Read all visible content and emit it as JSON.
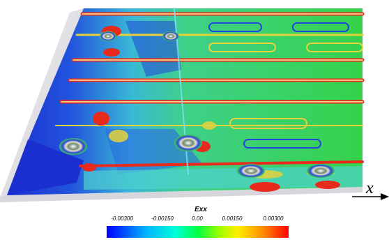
{
  "axis": {
    "x_label": "x"
  },
  "legend": {
    "title": "Exx",
    "ticks": [
      "-0.00300",
      "-0.00150",
      "0.00",
      "0.00150",
      "0.00300"
    ],
    "colors": [
      "#0000ff",
      "#00b6ff",
      "#00ffd8",
      "#00ff40",
      "#9dff00",
      "#ffee00",
      "#ff8c00",
      "#ff0000"
    ]
  },
  "palette": {
    "plate_green": "#36d24a",
    "low_blue": "#1b2fd0",
    "mid_cyan": "#39d1d1",
    "high_red": "#e82a1c",
    "yellow": "#e6d23a",
    "slab_gray": "#e4e4e8"
  }
}
